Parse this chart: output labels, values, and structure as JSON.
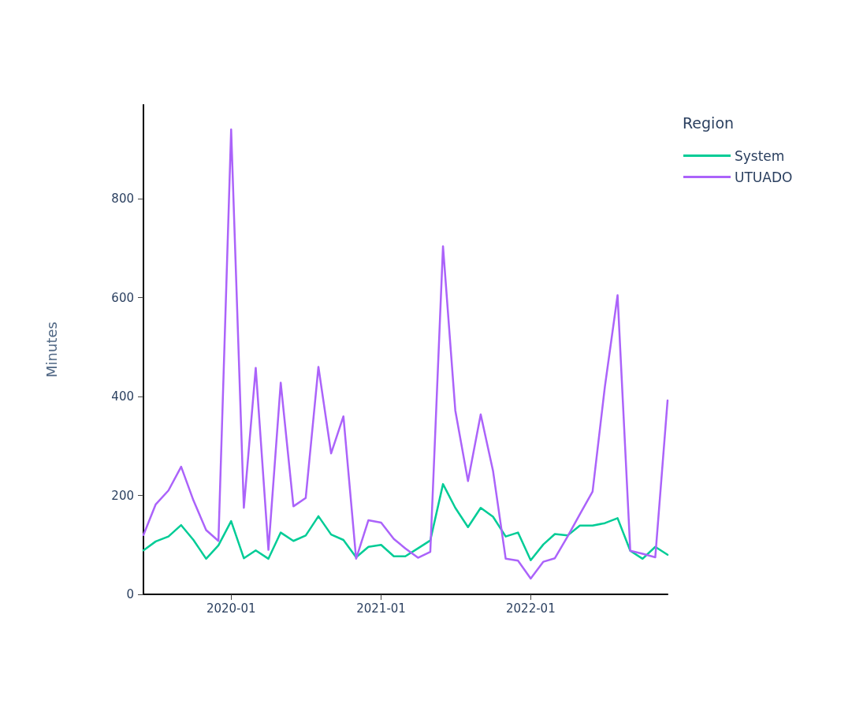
{
  "chart_data": {
    "type": "line",
    "ylabel": "Minutes",
    "legend_title": "Region",
    "legend": "top right",
    "grid": false,
    "marker": "none",
    "line_style": "solid",
    "x": [
      "2019-06",
      "2019-07",
      "2019-08",
      "2019-09",
      "2019-10",
      "2019-11",
      "2019-12",
      "2020-01",
      "2020-02",
      "2020-03",
      "2020-04",
      "2020-05",
      "2020-06",
      "2020-07",
      "2020-08",
      "2020-09",
      "2020-10",
      "2020-11",
      "2020-12",
      "2021-01",
      "2021-02",
      "2021-03",
      "2021-04",
      "2021-05",
      "2021-06",
      "2021-07",
      "2021-08",
      "2021-09",
      "2021-10",
      "2021-11",
      "2021-12",
      "2022-01",
      "2022-02",
      "2022-03",
      "2022-04",
      "2022-05",
      "2022-06",
      "2022-07",
      "2022-08",
      "2022-09",
      "2022-10",
      "2022-11",
      "2022-12"
    ],
    "xlim": [
      "2019-06",
      "2022-12"
    ],
    "xticks": [
      "2020-01",
      "2021-01",
      "2022-01"
    ],
    "ylim": [
      0,
      990
    ],
    "yticks": [
      0,
      200,
      400,
      600,
      800
    ],
    "series": [
      {
        "name": "System",
        "color": "#00cc96",
        "values": [
          89,
          107,
          117,
          140,
          110,
          72,
          99,
          148,
          73,
          89,
          72,
          125,
          108,
          119,
          158,
          121,
          110,
          75,
          96,
          100,
          77,
          77,
          93,
          109,
          223,
          175,
          136,
          175,
          157,
          117,
          125,
          69,
          101,
          122,
          119,
          139,
          139,
          144,
          154,
          88,
          72,
          96,
          80
        ]
      },
      {
        "name": "UTUADO",
        "color": "#ab63fa",
        "values": [
          120,
          182,
          210,
          258,
          190,
          130,
          108,
          940,
          175,
          458,
          90,
          428,
          178,
          195,
          460,
          285,
          360,
          72,
          150,
          145,
          112,
          93,
          74,
          86,
          704,
          372,
          229,
          364,
          250,
          72,
          68,
          32,
          66,
          73,
          117,
          162,
          208,
          420,
          605,
          88,
          82,
          75,
          392
        ]
      }
    ]
  }
}
